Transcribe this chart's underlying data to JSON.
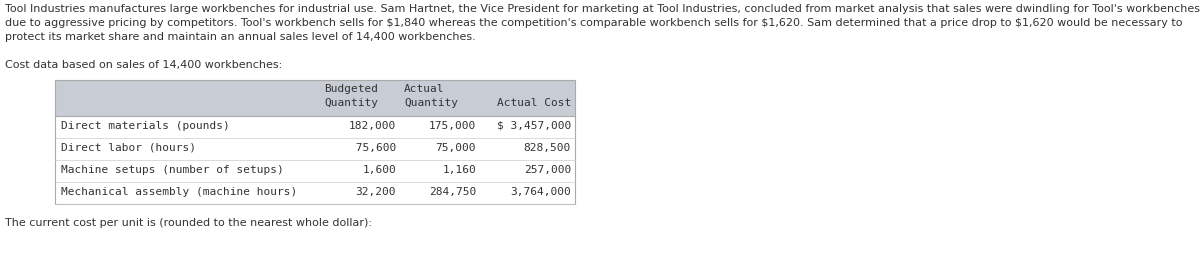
{
  "para_lines": [
    "Tool Industries manufactures large workbenches for industrial use. Sam Hartnet, the Vice President for marketing at Tool Industries, concluded from market analysis that sales were dwindling for Tool's workbenches",
    "due to aggressive pricing by competitors. Tool's workbench sells for $1,840 whereas the competition's comparable workbench sells for $1,620. Sam determined that a price drop to $1,620 would be necessary to",
    "protect its market share and maintain an annual sales level of 14,400 workbenches."
  ],
  "cost_label": "Cost data based on sales of 14,400 workbenches:",
  "rows": [
    [
      "Direct materials (pounds)",
      "182,000",
      "175,000",
      "$ 3,457,000"
    ],
    [
      "Direct labor (hours)",
      " 75,600",
      "75,000",
      "828,500"
    ],
    [
      "Machine setups (number of setups)",
      "1,600",
      "1,160",
      "257,000"
    ],
    [
      "Mechanical assembly (machine hours)",
      "32,200",
      "284,750",
      "3,764,000"
    ]
  ],
  "footer": "The current cost per unit is (rounded to the nearest whole dollar):",
  "header_bg": "#c8ccd4",
  "text_color": "#333333",
  "body_font_size": 8.0,
  "table_font_size": 8.0,
  "bg_color": "#ffffff",
  "border_color": "#aaaaaa",
  "sep_color": "#cccccc"
}
